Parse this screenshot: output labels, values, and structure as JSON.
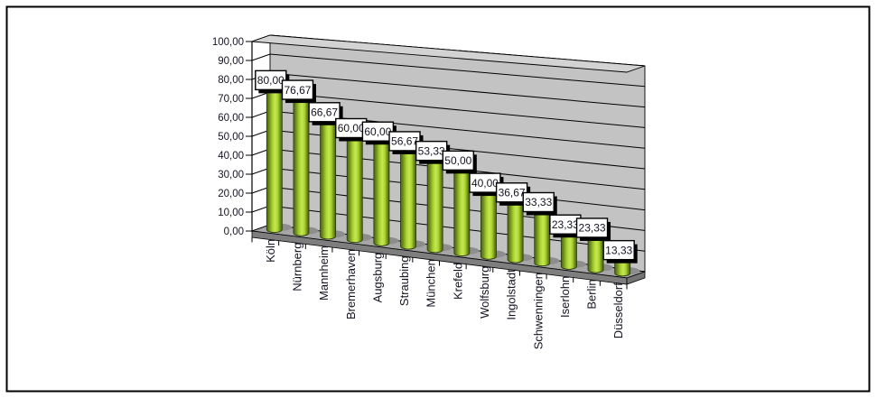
{
  "chart_data": {
    "type": "bar",
    "style": "3d-cylinder",
    "title": "",
    "xlabel": "",
    "ylabel": "",
    "legend": "none",
    "grid": true,
    "ylim": [
      0,
      100
    ],
    "y_step": 10,
    "categories": [
      "Köln",
      "Nürnberg",
      "Mannheim",
      "Bremerhaven",
      "Augsburg",
      "Straubing",
      "München",
      "Krefeld",
      "Wolfsburg",
      "Ingolstadt",
      "Schwenningen",
      "Iserlohn",
      "Berlin",
      "Düsseldorf"
    ],
    "values": [
      80,
      76.67,
      66.67,
      60,
      60,
      56.67,
      53.33,
      50,
      40,
      36.67,
      33.33,
      23.33,
      23.33,
      13.33
    ],
    "data_labels": [
      "80,00",
      "76,67",
      "66,67",
      "60,00",
      "60,00",
      "56,67",
      "53,33",
      "50,00",
      "40,00",
      "36,67",
      "33,33",
      "23,33",
      "23,33",
      "13,33"
    ],
    "y_ticks": [
      "0,00",
      "10,00",
      "20,00",
      "30,00",
      "40,00",
      "50,00",
      "60,00",
      "70,00",
      "80,00",
      "90,00",
      "100,00"
    ],
    "colors": {
      "bar_mid": "#aad42f",
      "bar_light": "#c6e754",
      "bar_dark": "#4f6a10",
      "bar_edge": "#64821a",
      "bar_top": "#8ab122",
      "outline": "#2e3d0b",
      "wall": "#c3c3c3",
      "wall_top": "#d3d3d3",
      "floor": "#a6a6a6",
      "floor_edge": "#7e7e7e",
      "floor_edge_side": "#747474",
      "bar_floor_shadow": "#8d8d8d",
      "gridline": "#000000",
      "axis": "#000000",
      "label_box_bg": "#ffffff",
      "label_box_border": "#000000",
      "label_box_shadow": "#000000",
      "text": "#141420",
      "frame_border": "#000000",
      "background": "#ffffff"
    }
  }
}
